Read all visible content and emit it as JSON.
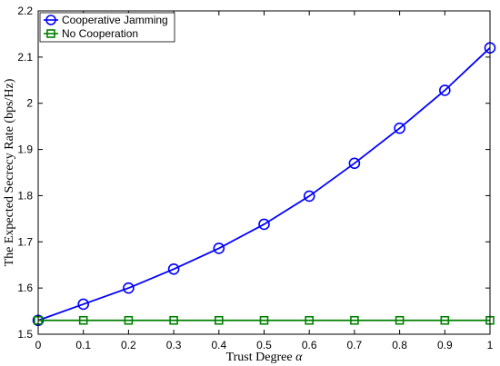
{
  "chart_data": {
    "type": "line",
    "title": "",
    "xlabel": "Trust Degree",
    "xlabel_symbol": "α",
    "ylabel": "The Expected Secrecy Rate (bps/Hz)",
    "xlim": [
      0,
      1
    ],
    "ylim": [
      1.5,
      2.2
    ],
    "x_ticks": [
      "0",
      "0.1",
      "0.2",
      "0.3",
      "0.4",
      "0.5",
      "0.6",
      "0.7",
      "0.8",
      "0.9",
      "1"
    ],
    "y_ticks": [
      "1.5",
      "1.6",
      "1.7",
      "1.8",
      "1.9",
      "2",
      "2.1",
      "2.2"
    ],
    "x": [
      0,
      0.1,
      0.2,
      0.3,
      0.4,
      0.5,
      0.6,
      0.7,
      0.8,
      0.9,
      1
    ],
    "grid": false,
    "legend_position": "top-left",
    "series": [
      {
        "name": "Cooperative Jamming",
        "color": "#0000ff",
        "marker": "circle",
        "values": [
          1.53,
          1.565,
          1.6,
          1.641,
          1.686,
          1.738,
          1.799,
          1.87,
          1.946,
          2.028,
          2.12
        ]
      },
      {
        "name": "No Cooperation",
        "color": "#008000",
        "marker": "square",
        "values": [
          1.53,
          1.53,
          1.53,
          1.53,
          1.53,
          1.53,
          1.53,
          1.53,
          1.53,
          1.53,
          1.53
        ]
      }
    ]
  }
}
